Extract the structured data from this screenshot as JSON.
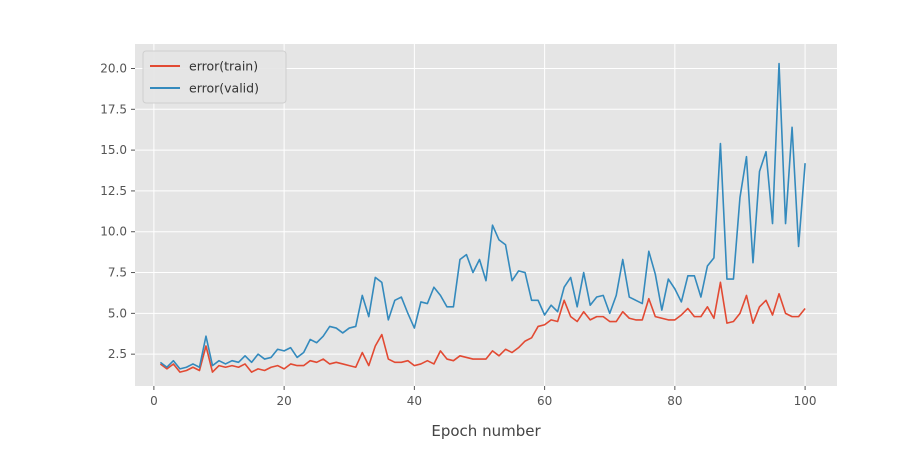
{
  "chart_data": {
    "type": "line",
    "title": "",
    "xlabel": "Epoch number",
    "ylabel": "",
    "xlim": [
      -2.9,
      104.9
    ],
    "ylim": [
      0.55,
      21.5
    ],
    "xticks": [
      0,
      20,
      40,
      60,
      80,
      100
    ],
    "yticks": [
      2.5,
      5.0,
      7.5,
      10.0,
      12.5,
      15.0,
      17.5,
      20.0
    ],
    "xtick_labels": [
      "0",
      "20",
      "40",
      "60",
      "80",
      "100"
    ],
    "ytick_labels": [
      "2.5",
      "5.0",
      "7.5",
      "10.0",
      "12.5",
      "15.0",
      "17.5",
      "20.0"
    ],
    "grid": true,
    "legend_position": "top-left",
    "x": [
      1,
      2,
      3,
      4,
      5,
      6,
      7,
      8,
      9,
      10,
      11,
      12,
      13,
      14,
      15,
      16,
      17,
      18,
      19,
      20,
      21,
      22,
      23,
      24,
      25,
      26,
      27,
      28,
      29,
      30,
      31,
      32,
      33,
      34,
      35,
      36,
      37,
      38,
      39,
      40,
      41,
      42,
      43,
      44,
      45,
      46,
      47,
      48,
      49,
      50,
      51,
      52,
      53,
      54,
      55,
      56,
      57,
      58,
      59,
      60,
      61,
      62,
      63,
      64,
      65,
      66,
      67,
      68,
      69,
      70,
      71,
      72,
      73,
      74,
      75,
      76,
      77,
      78,
      79,
      80,
      81,
      82,
      83,
      84,
      85,
      86,
      87,
      88,
      89,
      90,
      91,
      92,
      93,
      94,
      95,
      96,
      97,
      98,
      99,
      100
    ],
    "series": [
      {
        "name": "error(train)",
        "color": "#E24A33",
        "values": [
          1.9,
          1.6,
          1.9,
          1.4,
          1.5,
          1.7,
          1.5,
          3.0,
          1.4,
          1.8,
          1.7,
          1.8,
          1.7,
          1.9,
          1.4,
          1.6,
          1.5,
          1.7,
          1.8,
          1.6,
          1.9,
          1.8,
          1.8,
          2.1,
          2.0,
          2.2,
          1.9,
          2.0,
          1.9,
          1.8,
          1.7,
          2.6,
          1.8,
          3.0,
          3.7,
          2.2,
          2.0,
          2.0,
          2.1,
          1.8,
          1.9,
          2.1,
          1.9,
          2.7,
          2.2,
          2.1,
          2.4,
          2.3,
          2.2,
          2.2,
          2.2,
          2.7,
          2.4,
          2.8,
          2.6,
          2.9,
          3.3,
          3.5,
          4.2,
          4.3,
          4.6,
          4.5,
          5.8,
          4.8,
          4.5,
          5.1,
          4.6,
          4.8,
          4.8,
          4.5,
          4.5,
          5.1,
          4.7,
          4.6,
          4.6,
          5.9,
          4.8,
          4.7,
          4.6,
          4.6,
          4.9,
          5.3,
          4.8,
          4.8,
          5.4,
          4.7,
          6.9,
          4.4,
          4.5,
          5.0,
          6.1,
          4.4,
          5.4,
          5.8,
          4.9,
          6.2,
          5.0,
          4.8,
          4.8,
          5.3
        ]
      },
      {
        "name": "error(valid)",
        "color": "#348ABD",
        "values": [
          2.0,
          1.7,
          2.1,
          1.6,
          1.7,
          1.9,
          1.7,
          3.6,
          1.8,
          2.1,
          1.9,
          2.1,
          2.0,
          2.4,
          2.0,
          2.5,
          2.2,
          2.3,
          2.8,
          2.7,
          2.9,
          2.3,
          2.6,
          3.4,
          3.2,
          3.6,
          4.2,
          4.1,
          3.8,
          4.1,
          4.2,
          6.1,
          4.8,
          7.2,
          6.9,
          4.6,
          5.8,
          6.0,
          5.0,
          4.1,
          5.7,
          5.6,
          6.6,
          6.1,
          5.4,
          5.4,
          8.3,
          8.6,
          7.5,
          8.3,
          7.0,
          10.4,
          9.5,
          9.2,
          7.0,
          7.6,
          7.5,
          5.8,
          5.8,
          4.9,
          5.5,
          5.1,
          6.6,
          7.2,
          5.4,
          7.5,
          5.5,
          6.0,
          6.1,
          5.0,
          6.1,
          8.3,
          6.0,
          5.8,
          5.6,
          8.8,
          7.4,
          5.2,
          7.1,
          6.5,
          5.7,
          7.3,
          7.3,
          6.0,
          7.9,
          8.4,
          15.4,
          7.1,
          7.1,
          12.1,
          14.6,
          8.1,
          13.7,
          14.9,
          10.5,
          20.3,
          10.5,
          16.4,
          9.1,
          14.2
        ]
      }
    ]
  }
}
